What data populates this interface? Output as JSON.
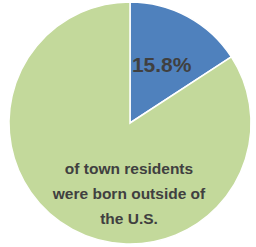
{
  "chart_data": {
    "type": "pie",
    "values": [
      15.8,
      84.2
    ],
    "value_labels": [
      "15.8%",
      null
    ],
    "data_labels": true,
    "colors": [
      "#4f81bd",
      "#c3d99b"
    ],
    "annotation": [
      "of town residents",
      "were born outside of",
      "the U.S."
    ]
  }
}
